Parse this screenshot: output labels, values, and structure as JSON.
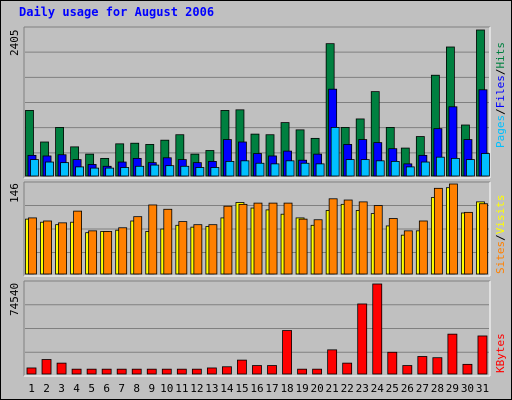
{
  "title": "Daily usage for August 2006",
  "colors": {
    "hits": "#008040",
    "files": "#0000ff",
    "pages": "#00c0ff",
    "visits": "#ffff00",
    "sites": "#ff8000",
    "kbytes": "#ff0000",
    "weekend_label": "#00805c",
    "title": "#0000ff"
  },
  "chart_data": [
    {
      "type": "bar",
      "categories": [
        "1",
        "2",
        "3",
        "4",
        "5",
        "6",
        "7",
        "8",
        "9",
        "10",
        "11",
        "12",
        "13",
        "14",
        "15",
        "16",
        "17",
        "18",
        "19",
        "20",
        "21",
        "22",
        "23",
        "24",
        "25",
        "26",
        "27",
        "28",
        "29",
        "30",
        "31"
      ],
      "weekend_days": [
        "5",
        "6",
        "12",
        "13",
        "19",
        "20",
        "26",
        "27"
      ],
      "ymax_label": "2405",
      "legend": [
        "Pages",
        "Files",
        "Hits"
      ],
      "series": [
        {
          "name": "Hits",
          "values": [
            1080,
            560,
            800,
            480,
            360,
            290,
            530,
            540,
            520,
            590,
            680,
            360,
            420,
            1080,
            1090,
            690,
            680,
            880,
            760,
            620,
            2180,
            800,
            940,
            1390,
            800,
            460,
            650,
            1660,
            2125,
            840,
            2405
          ]
        },
        {
          "name": "Files",
          "values": [
            340,
            330,
            350,
            270,
            190,
            160,
            230,
            290,
            220,
            300,
            270,
            220,
            240,
            600,
            560,
            370,
            330,
            410,
            260,
            360,
            1430,
            520,
            600,
            550,
            450,
            200,
            340,
            780,
            1140,
            600,
            1420
          ]
        },
        {
          "name": "Pages",
          "values": [
            270,
            230,
            220,
            150,
            130,
            130,
            140,
            160,
            180,
            170,
            160,
            140,
            140,
            240,
            250,
            210,
            200,
            250,
            210,
            200,
            800,
            270,
            270,
            250,
            240,
            150,
            230,
            310,
            290,
            270,
            370
          ]
        }
      ]
    },
    {
      "type": "bar",
      "categories": [
        "1",
        "2",
        "3",
        "4",
        "5",
        "6",
        "7",
        "8",
        "9",
        "10",
        "11",
        "12",
        "13",
        "14",
        "15",
        "16",
        "17",
        "18",
        "19",
        "20",
        "21",
        "22",
        "23",
        "24",
        "25",
        "26",
        "27",
        "28",
        "29",
        "30",
        "31"
      ],
      "ymax_label": "146",
      "legend": [
        "Sites",
        "Visits"
      ],
      "series": [
        {
          "name": "Visits",
          "values": [
            89,
            84,
            80,
            84,
            67,
            69,
            71,
            86,
            69,
            73,
            79,
            76,
            77,
            91,
            116,
            107,
            104,
            97,
            91,
            79,
            103,
            113,
            103,
            98,
            78,
            63,
            70,
            124,
            140,
            99,
            117
          ]
        },
        {
          "name": "Sites",
          "values": [
            91,
            86,
            83,
            102,
            70,
            69,
            75,
            93,
            112,
            105,
            85,
            80,
            80,
            110,
            113,
            115,
            115,
            115,
            89,
            88,
            122,
            120,
            117,
            111,
            90,
            70,
            86,
            139,
            146,
            100,
            114
          ]
        }
      ]
    },
    {
      "type": "bar",
      "categories": [
        "1",
        "2",
        "3",
        "4",
        "5",
        "6",
        "7",
        "8",
        "9",
        "10",
        "11",
        "12",
        "13",
        "14",
        "15",
        "16",
        "17",
        "18",
        "19",
        "20",
        "21",
        "22",
        "23",
        "24",
        "25",
        "26",
        "27",
        "28",
        "29",
        "30",
        "31"
      ],
      "ymax_label": "74540",
      "legend": [
        "KBytes"
      ],
      "series": [
        {
          "name": "KBytes",
          "values": [
            5000,
            12000,
            9000,
            4000,
            4000,
            4000,
            4000,
            4000,
            4000,
            4000,
            4000,
            4000,
            5000,
            6000,
            11500,
            7000,
            7000,
            36000,
            4000,
            4000,
            20000,
            9000,
            58000,
            74540,
            18000,
            7000,
            14500,
            13500,
            33000,
            8000,
            31500
          ]
        }
      ]
    }
  ]
}
